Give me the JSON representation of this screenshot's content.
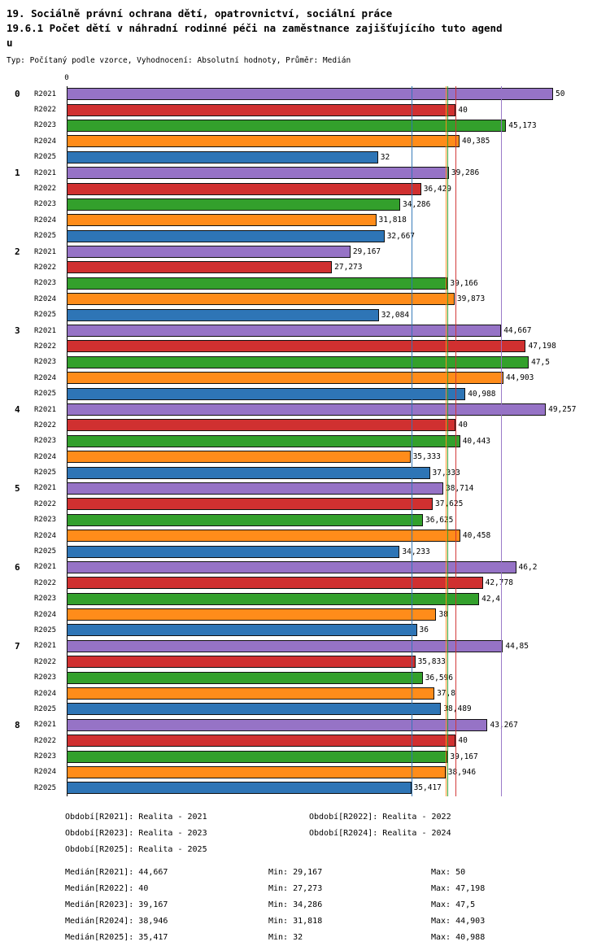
{
  "header": {
    "title_line1": "19. Sociálně právní ochrana dětí, opatrovnictví, sociální práce",
    "title_line2": "19.6.1 Počet dětí v náhradní rodinné péči na zaměstnance zajišťujícího tuto agend",
    "title_line3": "u",
    "meta": "Typ: Počítaný podle vzorce, Vyhodnocení: Absolutní hodnoty, Průměr: Medián"
  },
  "chart_data": {
    "type": "bar",
    "orientation": "horizontal",
    "x_axis": {
      "origin_label": "0",
      "min": 0,
      "max": 50
    },
    "grid": false,
    "series": [
      {
        "name": "R2021",
        "color": "#9673C6"
      },
      {
        "name": "R2022",
        "color": "#D03030"
      },
      {
        "name": "R2023",
        "color": "#33A02C"
      },
      {
        "name": "R2024",
        "color": "#FF8C1A"
      },
      {
        "name": "R2025",
        "color": "#2E75B6"
      }
    ],
    "groups": [
      {
        "label": "0",
        "values": [
          50,
          40,
          45.173,
          40.385,
          32
        ],
        "value_labels": [
          "50",
          "40",
          "45,173",
          "40,385",
          "32"
        ]
      },
      {
        "label": "1",
        "values": [
          39.286,
          36.429,
          34.286,
          31.818,
          32.667
        ],
        "value_labels": [
          "39,286",
          "36,429",
          "34,286",
          "31,818",
          "32,667"
        ]
      },
      {
        "label": "2",
        "values": [
          29.167,
          27.273,
          39.166,
          39.873,
          32.084
        ],
        "value_labels": [
          "29,167",
          "27,273",
          "39,166",
          "39,873",
          "32,084"
        ]
      },
      {
        "label": "3",
        "values": [
          44.667,
          47.198,
          47.5,
          44.903,
          40.988
        ],
        "value_labels": [
          "44,667",
          "47,198",
          "47,5",
          "44,903",
          "40,988"
        ]
      },
      {
        "label": "4",
        "values": [
          49.257,
          40,
          40.443,
          35.333,
          37.333
        ],
        "value_labels": [
          "49,257",
          "40",
          "40,443",
          "35,333",
          "37,333"
        ]
      },
      {
        "label": "5",
        "values": [
          38.714,
          37.625,
          36.625,
          40.458,
          34.233
        ],
        "value_labels": [
          "38,714",
          "37,625",
          "36,625",
          "40,458",
          "34,233"
        ]
      },
      {
        "label": "6",
        "values": [
          46.2,
          42.778,
          42.4,
          38,
          36
        ],
        "value_labels": [
          "46,2",
          "42,778",
          "42,4",
          "38",
          "36"
        ]
      },
      {
        "label": "7",
        "values": [
          44.85,
          35.833,
          36.596,
          37.8,
          38.489
        ],
        "value_labels": [
          "44,85",
          "35,833",
          "36,596",
          "37,8",
          "38,489"
        ]
      },
      {
        "label": "8",
        "values": [
          43.267,
          40,
          39.167,
          38.946,
          35.417
        ],
        "value_labels": [
          "43,267",
          "40",
          "39,167",
          "38,946",
          "35,417"
        ]
      }
    ],
    "medians": [
      {
        "series": "R2021",
        "value": 44.667
      },
      {
        "series": "R2022",
        "value": 40
      },
      {
        "series": "R2023",
        "value": 39.167
      },
      {
        "series": "R2024",
        "value": 38.946
      },
      {
        "series": "R2025",
        "value": 35.417
      }
    ]
  },
  "legend": {
    "items": [
      {
        "text": "Období[R2021]: Realita - 2021"
      },
      {
        "text": "Období[R2022]: Realita - 2022"
      },
      {
        "text": "Období[R2023]: Realita - 2023"
      },
      {
        "text": "Období[R2024]: Realita - 2024"
      },
      {
        "text": "Období[R2025]: Realita - 2025"
      }
    ]
  },
  "stats": {
    "rows": [
      {
        "median": "Medián[R2021]: 44,667",
        "min": "Min: 29,167",
        "max": "Max: 50"
      },
      {
        "median": "Medián[R2022]: 40",
        "min": "Min: 27,273",
        "max": "Max: 47,198"
      },
      {
        "median": "Medián[R2023]: 39,167",
        "min": "Min: 34,286",
        "max": "Max: 47,5"
      },
      {
        "median": "Medián[R2024]: 38,946",
        "min": "Min: 31,818",
        "max": "Max: 44,903"
      },
      {
        "median": "Medián[R2025]: 35,417",
        "min": "Min: 32",
        "max": "Max: 40,988"
      }
    ]
  }
}
